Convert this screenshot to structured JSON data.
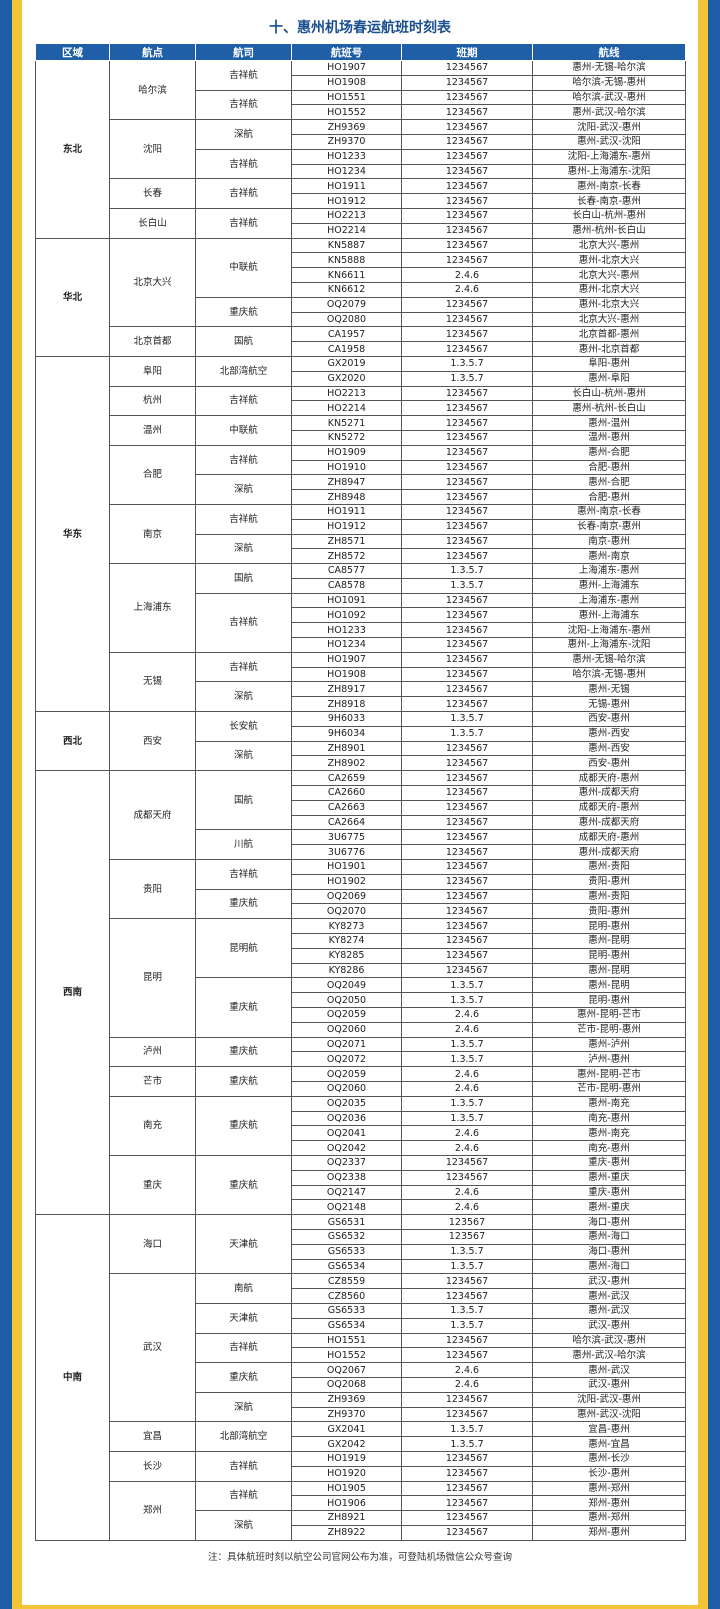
{
  "title": "十、惠州机场春运航班时刻表",
  "headers": [
    "区域",
    "航点",
    "航司",
    "航班号",
    "班期",
    "航线"
  ],
  "note": "注：具体航班时刻以航空公司官网公布为准，可登陆机场微信公众号查询",
  "colors": {
    "header_bg": "#1f5fa8",
    "title": "#1a4f8f",
    "frame_blue": "#1f5da8",
    "frame_yellow": "#f2c438"
  },
  "regions": [
    {
      "name": "东北",
      "points": [
        {
          "name": "哈尔滨",
          "airlines": [
            {
              "name": "吉祥航",
              "flights": [
                [
                  "HO1907",
                  "1234567",
                  "惠州-无锡-哈尔滨"
                ],
                [
                  "HO1908",
                  "1234567",
                  "哈尔滨-无锡-惠州"
                ]
              ]
            },
            {
              "name": "吉祥航",
              "flights": [
                [
                  "HO1551",
                  "1234567",
                  "哈尔滨-武汉-惠州"
                ],
                [
                  "HO1552",
                  "1234567",
                  "惠州-武汉-哈尔滨"
                ]
              ]
            }
          ]
        },
        {
          "name": "沈阳",
          "airlines": [
            {
              "name": "深航",
              "flights": [
                [
                  "ZH9369",
                  "1234567",
                  "沈阳-武汉-惠州"
                ],
                [
                  "ZH9370",
                  "1234567",
                  "惠州-武汉-沈阳"
                ]
              ]
            },
            {
              "name": "吉祥航",
              "flights": [
                [
                  "HO1233",
                  "1234567",
                  "沈阳-上海浦东-惠州"
                ],
                [
                  "HO1234",
                  "1234567",
                  "惠州-上海浦东-沈阳"
                ]
              ]
            }
          ]
        },
        {
          "name": "长春",
          "airlines": [
            {
              "name": "吉祥航",
              "flights": [
                [
                  "HO1911",
                  "1234567",
                  "惠州-南京-长春"
                ],
                [
                  "HO1912",
                  "1234567",
                  "长春-南京-惠州"
                ]
              ]
            }
          ]
        },
        {
          "name": "长白山",
          "airlines": [
            {
              "name": "吉祥航",
              "flights": [
                [
                  "HO2213",
                  "1234567",
                  "长白山-杭州-惠州"
                ],
                [
                  "HO2214",
                  "1234567",
                  "惠州-杭州-长白山"
                ]
              ]
            }
          ]
        }
      ]
    },
    {
      "name": "华北",
      "points": [
        {
          "name": "北京大兴",
          "airlines": [
            {
              "name": "中联航",
              "flights": [
                [
                  "KN5887",
                  "1234567",
                  "北京大兴-惠州"
                ],
                [
                  "KN5888",
                  "1234567",
                  "惠州-北京大兴"
                ],
                [
                  "KN6611",
                  "2.4.6",
                  "北京大兴-惠州"
                ],
                [
                  "KN6612",
                  "2.4.6",
                  "惠州-北京大兴"
                ]
              ]
            },
            {
              "name": "重庆航",
              "flights": [
                [
                  "OQ2079",
                  "1234567",
                  "惠州-北京大兴"
                ],
                [
                  "OQ2080",
                  "1234567",
                  "北京大兴-惠州"
                ]
              ]
            }
          ]
        },
        {
          "name": "北京首都",
          "airlines": [
            {
              "name": "国航",
              "flights": [
                [
                  "CA1957",
                  "1234567",
                  "北京首都-惠州"
                ],
                [
                  "CA1958",
                  "1234567",
                  "惠州-北京首都"
                ]
              ]
            }
          ]
        }
      ]
    },
    {
      "name": "华东",
      "points": [
        {
          "name": "阜阳",
          "airlines": [
            {
              "name": "北部湾航空",
              "flights": [
                [
                  "GX2019",
                  "1.3.5.7",
                  "阜阳-惠州"
                ],
                [
                  "GX2020",
                  "1.3.5.7",
                  "惠州-阜阳"
                ]
              ]
            }
          ]
        },
        {
          "name": "杭州",
          "airlines": [
            {
              "name": "吉祥航",
              "flights": [
                [
                  "HO2213",
                  "1234567",
                  "长白山-杭州-惠州"
                ],
                [
                  "HO2214",
                  "1234567",
                  "惠州-杭州-长白山"
                ]
              ]
            }
          ]
        },
        {
          "name": "温州",
          "airlines": [
            {
              "name": "中联航",
              "flights": [
                [
                  "KN5271",
                  "1234567",
                  "惠州-温州"
                ],
                [
                  "KN5272",
                  "1234567",
                  "温州-惠州"
                ]
              ]
            }
          ]
        },
        {
          "name": "合肥",
          "airlines": [
            {
              "name": "吉祥航",
              "flights": [
                [
                  "HO1909",
                  "1234567",
                  "惠州-合肥"
                ],
                [
                  "HO1910",
                  "1234567",
                  "合肥-惠州"
                ]
              ]
            },
            {
              "name": "深航",
              "flights": [
                [
                  "ZH8947",
                  "1234567",
                  "惠州-合肥"
                ],
                [
                  "ZH8948",
                  "1234567",
                  "合肥-惠州"
                ]
              ]
            }
          ]
        },
        {
          "name": "南京",
          "airlines": [
            {
              "name": "吉祥航",
              "flights": [
                [
                  "HO1911",
                  "1234567",
                  "惠州-南京-长春"
                ],
                [
                  "HO1912",
                  "1234567",
                  "长春-南京-惠州"
                ]
              ]
            },
            {
              "name": "深航",
              "flights": [
                [
                  "ZH8571",
                  "1234567",
                  "南京-惠州"
                ],
                [
                  "ZH8572",
                  "1234567",
                  "惠州-南京"
                ]
              ]
            }
          ]
        },
        {
          "name": "上海浦东",
          "airlines": [
            {
              "name": "国航",
              "flights": [
                [
                  "CA8577",
                  "1.3.5.7",
                  "上海浦东-惠州"
                ],
                [
                  "CA8578",
                  "1.3.5.7",
                  "惠州-上海浦东"
                ]
              ]
            },
            {
              "name": "吉祥航",
              "flights": [
                [
                  "HO1091",
                  "1234567",
                  "上海浦东-惠州"
                ],
                [
                  "HO1092",
                  "1234567",
                  "惠州-上海浦东"
                ],
                [
                  "HO1233",
                  "1234567",
                  "沈阳-上海浦东-惠州"
                ],
                [
                  "HO1234",
                  "1234567",
                  "惠州-上海浦东-沈阳"
                ]
              ]
            }
          ]
        },
        {
          "name": "无锡",
          "airlines": [
            {
              "name": "吉祥航",
              "flights": [
                [
                  "HO1907",
                  "1234567",
                  "惠州-无锡-哈尔滨"
                ],
                [
                  "HO1908",
                  "1234567",
                  "哈尔滨-无锡-惠州"
                ]
              ]
            },
            {
              "name": "深航",
              "flights": [
                [
                  "ZH8917",
                  "1234567",
                  "惠州-无锡"
                ],
                [
                  "ZH8918",
                  "1234567",
                  "无锡-惠州"
                ]
              ]
            }
          ]
        }
      ]
    },
    {
      "name": "西北",
      "points": [
        {
          "name": "西安",
          "airlines": [
            {
              "name": "长安航",
              "flights": [
                [
                  "9H6033",
                  "1.3.5.7",
                  "西安-惠州"
                ],
                [
                  "9H6034",
                  "1.3.5.7",
                  "惠州-西安"
                ]
              ]
            },
            {
              "name": "深航",
              "flights": [
                [
                  "ZH8901",
                  "1234567",
                  "惠州-西安"
                ],
                [
                  "ZH8902",
                  "1234567",
                  "西安-惠州"
                ]
              ]
            }
          ]
        }
      ]
    },
    {
      "name": "西南",
      "points": [
        {
          "name": "成都天府",
          "airlines": [
            {
              "name": "国航",
              "flights": [
                [
                  "CA2659",
                  "1234567",
                  "成都天府-惠州"
                ],
                [
                  "CA2660",
                  "1234567",
                  "惠州-成都天府"
                ],
                [
                  "CA2663",
                  "1234567",
                  "成都天府-惠州"
                ],
                [
                  "CA2664",
                  "1234567",
                  "惠州-成都天府"
                ]
              ]
            },
            {
              "name": "川航",
              "flights": [
                [
                  "3U6775",
                  "1234567",
                  "成都天府-惠州"
                ],
                [
                  "3U6776",
                  "1234567",
                  "惠州-成都天府"
                ]
              ]
            }
          ]
        },
        {
          "name": "贵阳",
          "airlines": [
            {
              "name": "吉祥航",
              "flights": [
                [
                  "HO1901",
                  "1234567",
                  "惠州-贵阳"
                ],
                [
                  "HO1902",
                  "1234567",
                  "贵阳-惠州"
                ]
              ]
            },
            {
              "name": "重庆航",
              "flights": [
                [
                  "OQ2069",
                  "1234567",
                  "惠州-贵阳"
                ],
                [
                  "OQ2070",
                  "1234567",
                  "贵阳-惠州"
                ]
              ]
            }
          ]
        },
        {
          "name": "昆明",
          "airlines": [
            {
              "name": "昆明航",
              "flights": [
                [
                  "KY8273",
                  "1234567",
                  "昆明-惠州"
                ],
                [
                  "KY8274",
                  "1234567",
                  "惠州-昆明"
                ],
                [
                  "KY8285",
                  "1234567",
                  "昆明-惠州"
                ],
                [
                  "KY8286",
                  "1234567",
                  "惠州-昆明"
                ]
              ]
            },
            {
              "name": "重庆航",
              "flights": [
                [
                  "OQ2049",
                  "1.3.5.7",
                  "惠州-昆明"
                ],
                [
                  "OQ2050",
                  "1.3.5.7",
                  "昆明-惠州"
                ],
                [
                  "OQ2059",
                  "2.4.6",
                  "惠州-昆明-芒市"
                ],
                [
                  "OQ2060",
                  "2.4.6",
                  "芒市-昆明-惠州"
                ]
              ]
            }
          ]
        },
        {
          "name": "泸州",
          "airlines": [
            {
              "name": "重庆航",
              "flights": [
                [
                  "OQ2071",
                  "1.3.5.7",
                  "惠州-泸州"
                ],
                [
                  "OQ2072",
                  "1.3.5.7",
                  "泸州-惠州"
                ]
              ]
            }
          ]
        },
        {
          "name": "芒市",
          "airlines": [
            {
              "name": "重庆航",
              "flights": [
                [
                  "OQ2059",
                  "2.4.6",
                  "惠州-昆明-芒市"
                ],
                [
                  "OQ2060",
                  "2.4.6",
                  "芒市-昆明-惠州"
                ]
              ]
            }
          ]
        },
        {
          "name": "南充",
          "airlines": [
            {
              "name": "重庆航",
              "flights": [
                [
                  "OQ2035",
                  "1.3.5.7",
                  "惠州-南充"
                ],
                [
                  "OQ2036",
                  "1.3.5.7",
                  "南充-惠州"
                ],
                [
                  "OQ2041",
                  "2.4.6",
                  "惠州-南充"
                ],
                [
                  "OQ2042",
                  "2.4.6",
                  "南充-惠州"
                ]
              ]
            }
          ]
        },
        {
          "name": "重庆",
          "airlines": [
            {
              "name": "重庆航",
              "flights": [
                [
                  "OQ2337",
                  "1234567",
                  "重庆-惠州"
                ],
                [
                  "OQ2338",
                  "1234567",
                  "惠州-重庆"
                ],
                [
                  "OQ2147",
                  "2.4.6",
                  "重庆-惠州"
                ],
                [
                  "OQ2148",
                  "2.4.6",
                  "惠州-重庆"
                ]
              ]
            }
          ]
        }
      ]
    },
    {
      "name": "中南",
      "points": [
        {
          "name": "海口",
          "airlines": [
            {
              "name": "天津航",
              "flights": [
                [
                  "GS6531",
                  "123567",
                  "海口-惠州"
                ],
                [
                  "GS6532",
                  "123567",
                  "惠州-海口"
                ],
                [
                  "GS6533",
                  "1.3.5.7",
                  "海口-惠州"
                ],
                [
                  "GS6534",
                  "1.3.5.7",
                  "惠州-海口"
                ]
              ]
            }
          ]
        },
        {
          "name": "武汉",
          "airlines": [
            {
              "name": "南航",
              "flights": [
                [
                  "CZ8559",
                  "1234567",
                  "武汉-惠州"
                ],
                [
                  "CZ8560",
                  "1234567",
                  "惠州-武汉"
                ]
              ]
            },
            {
              "name": "天津航",
              "flights": [
                [
                  "GS6533",
                  "1.3.5.7",
                  "惠州-武汉"
                ],
                [
                  "GS6534",
                  "1.3.5.7",
                  "武汉-惠州"
                ]
              ]
            },
            {
              "name": "吉祥航",
              "flights": [
                [
                  "HO1551",
                  "1234567",
                  "哈尔滨-武汉-惠州"
                ],
                [
                  "HO1552",
                  "1234567",
                  "惠州-武汉-哈尔滨"
                ]
              ]
            },
            {
              "name": "重庆航",
              "flights": [
                [
                  "OQ2067",
                  "2.4.6",
                  "惠州-武汉"
                ],
                [
                  "OQ2068",
                  "2.4.6",
                  "武汉-惠州"
                ]
              ]
            },
            {
              "name": "深航",
              "flights": [
                [
                  "ZH9369",
                  "1234567",
                  "沈阳-武汉-惠州"
                ],
                [
                  "ZH9370",
                  "1234567",
                  "惠州-武汉-沈阳"
                ]
              ]
            }
          ]
        },
        {
          "name": "宜昌",
          "airlines": [
            {
              "name": "北部湾航空",
              "flights": [
                [
                  "GX2041",
                  "1.3.5.7",
                  "宜昌-惠州"
                ],
                [
                  "GX2042",
                  "1.3.5.7",
                  "惠州-宜昌"
                ]
              ]
            }
          ]
        },
        {
          "name": "长沙",
          "airlines": [
            {
              "name": "吉祥航",
              "flights": [
                [
                  "HO1919",
                  "1234567",
                  "惠州-长沙"
                ],
                [
                  "HO1920",
                  "1234567",
                  "长沙-惠州"
                ]
              ]
            }
          ]
        },
        {
          "name": "郑州",
          "airlines": [
            {
              "name": "吉祥航",
              "flights": [
                [
                  "HO1905",
                  "1234567",
                  "惠州-郑州"
                ],
                [
                  "HO1906",
                  "1234567",
                  "郑州-惠州"
                ]
              ]
            },
            {
              "name": "深航",
              "flights": [
                [
                  "ZH8921",
                  "1234567",
                  "惠州-郑州"
                ],
                [
                  "ZH8922",
                  "1234567",
                  "郑州-惠州"
                ]
              ]
            }
          ]
        }
      ]
    }
  ]
}
